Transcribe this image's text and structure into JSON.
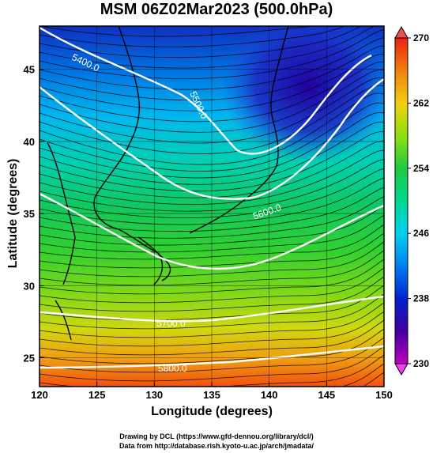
{
  "chart_data": {
    "type": "heatmap",
    "title": "MSM 06Z02Mar2023 (500.0hPa)",
    "xlabel": "Longitude (degrees)",
    "ylabel": "Latitude  (degrees)",
    "xlim": [
      120,
      150
    ],
    "ylim": [
      23,
      48
    ],
    "xticks": [
      120,
      125,
      130,
      135,
      140,
      145,
      150
    ],
    "yticks": [
      25,
      30,
      35,
      40,
      45
    ],
    "colorbar": {
      "ticks": [
        230,
        238,
        246,
        254,
        262,
        270
      ],
      "range": [
        230,
        270
      ],
      "colors": [
        "#c000c0",
        "#2a00b0",
        "#0040e0",
        "#00a0f0",
        "#00e0d0",
        "#10c060",
        "#40d020",
        "#a0e010",
        "#f0d010",
        "#f08010",
        "#f03010"
      ]
    },
    "contour_labels": [
      {
        "text": "5400.0"
      },
      {
        "text": "5500.0"
      },
      {
        "text": "5600.0"
      },
      {
        "text": "5700.0"
      },
      {
        "text": "5800.0"
      }
    ],
    "temperature_field": [
      {
        "lat": 23,
        "value": 266
      },
      {
        "lat": 26,
        "value": 262
      },
      {
        "lat": 29,
        "value": 258
      },
      {
        "lat": 32,
        "value": 254
      },
      {
        "lat": 35,
        "value": 250
      },
      {
        "lat": 38,
        "value": 246
      },
      {
        "lat": 41,
        "value": 240
      },
      {
        "lat": 44,
        "value": 236
      },
      {
        "lat": 48,
        "value": 232
      }
    ],
    "gridlines": true
  },
  "credits": {
    "line1": "Drawing by DCL (https://www.gfd-dennou.org/library/dcl/)",
    "line2": "Data from http://database.rish.kyoto-u.ac.jp/arch/jmadata/"
  }
}
